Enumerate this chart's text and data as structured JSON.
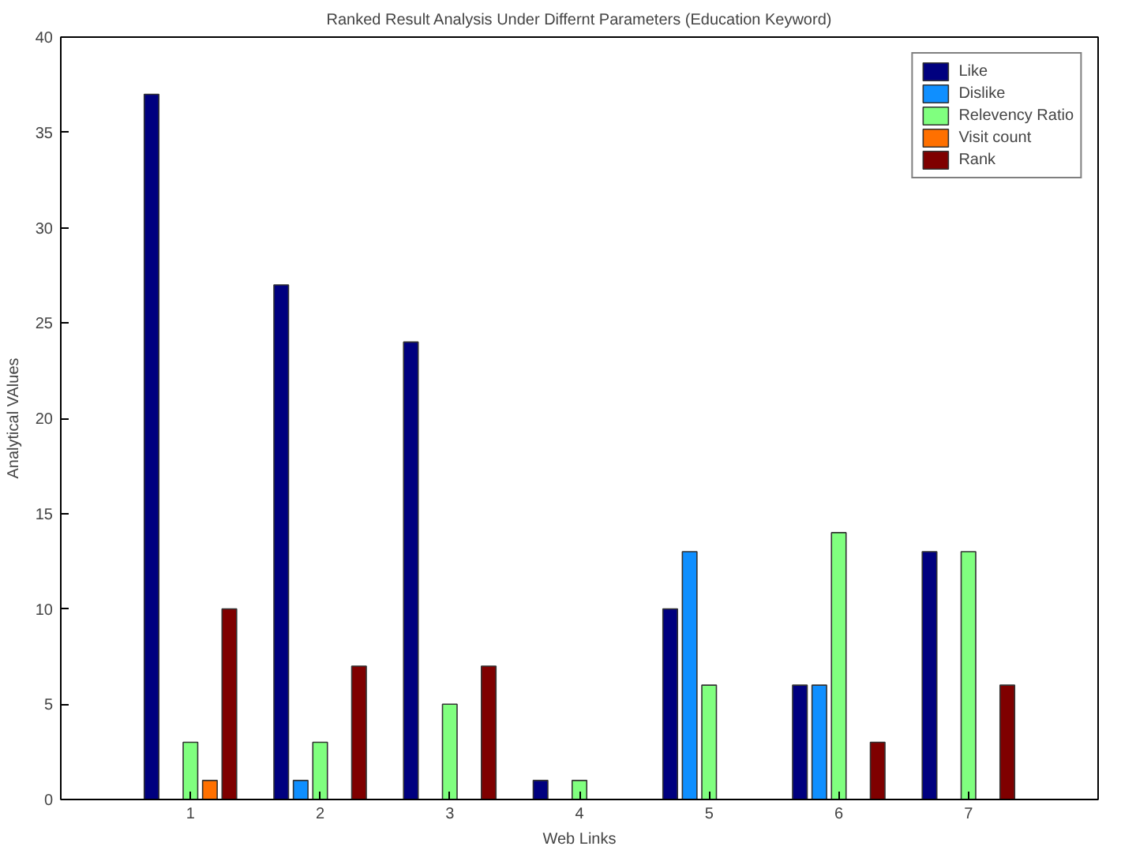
{
  "chart_data": {
    "type": "bar",
    "title": "Ranked Result Analysis Under Differnt Parameters (Education Keyword)",
    "xlabel": "Web Links",
    "ylabel": "Analytical VAlues",
    "x": [
      1,
      2,
      3,
      4,
      5,
      6,
      7
    ],
    "series": [
      {
        "name": "Like",
        "color": "#00007f",
        "values": [
          37,
          27,
          24,
          1,
          10,
          6,
          13
        ]
      },
      {
        "name": "Dislike",
        "color": "#0f8fff",
        "values": [
          null,
          1,
          null,
          null,
          13,
          6,
          null
        ]
      },
      {
        "name": "Relevency Ratio",
        "color": "#80ff7f",
        "values": [
          3,
          3,
          5,
          1,
          6,
          14,
          13
        ]
      },
      {
        "name": "Visit count",
        "color": "#ff7000",
        "values": [
          1,
          null,
          null,
          null,
          null,
          null,
          null
        ]
      },
      {
        "name": "Rank",
        "color": "#7f0000",
        "values": [
          10,
          7,
          7,
          null,
          null,
          3,
          6
        ]
      }
    ],
    "xlim": [
      0,
      8
    ],
    "xticks": [
      1,
      2,
      3,
      4,
      5,
      6,
      7
    ],
    "ylim": [
      0,
      40
    ],
    "yticks": [
      0,
      5,
      10,
      15,
      20,
      25,
      30,
      35,
      40
    ],
    "grid": false,
    "legend": "top right"
  }
}
